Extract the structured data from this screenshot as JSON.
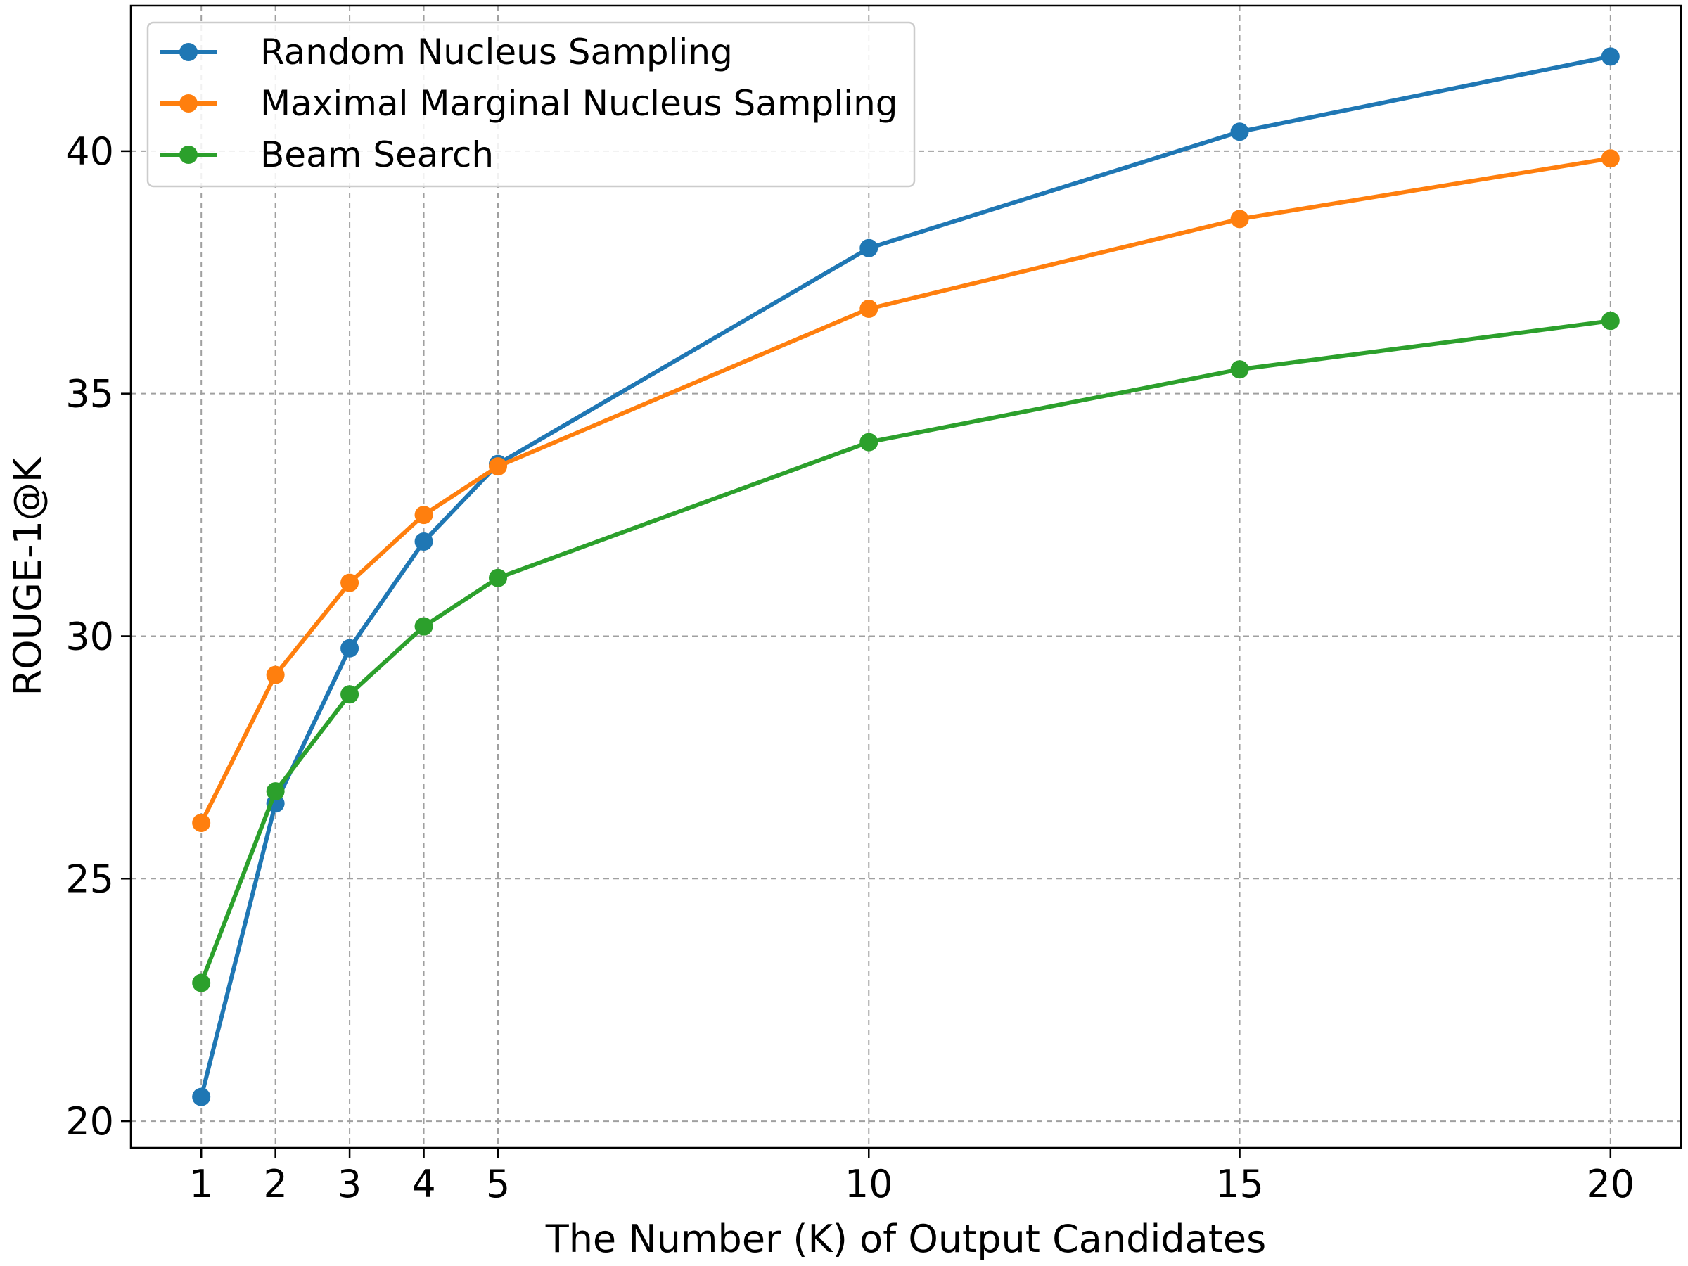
{
  "chart_data": {
    "type": "line",
    "xlabel": "The Number (K) of Output Candidates",
    "ylabel": "ROUGE-1@K",
    "x": [
      1,
      2,
      3,
      4,
      5,
      10,
      15,
      20
    ],
    "xticks": [
      1,
      2,
      3,
      4,
      5,
      10,
      15,
      20
    ],
    "yticks": [
      20,
      25,
      30,
      35,
      40
    ],
    "xlim": [
      0.05,
      20.95
    ],
    "ylim": [
      19.45,
      43.0
    ],
    "grid": true,
    "grid_style": "dashed",
    "legend_position": "upper-left",
    "series": [
      {
        "name": "Random Nucleus Sampling",
        "color": "#1f77b4",
        "values": [
          20.5,
          26.55,
          29.75,
          31.95,
          33.55,
          38.0,
          40.4,
          41.95
        ]
      },
      {
        "name": "Maximal Marginal Nucleus Sampling",
        "color": "#ff7f0e",
        "values": [
          26.15,
          29.2,
          31.1,
          32.5,
          33.5,
          36.75,
          38.6,
          39.85
        ]
      },
      {
        "name": "Beam Search",
        "color": "#2ca02c",
        "values": [
          22.85,
          26.8,
          28.8,
          30.2,
          31.2,
          34.0,
          35.5,
          36.5
        ]
      }
    ]
  }
}
